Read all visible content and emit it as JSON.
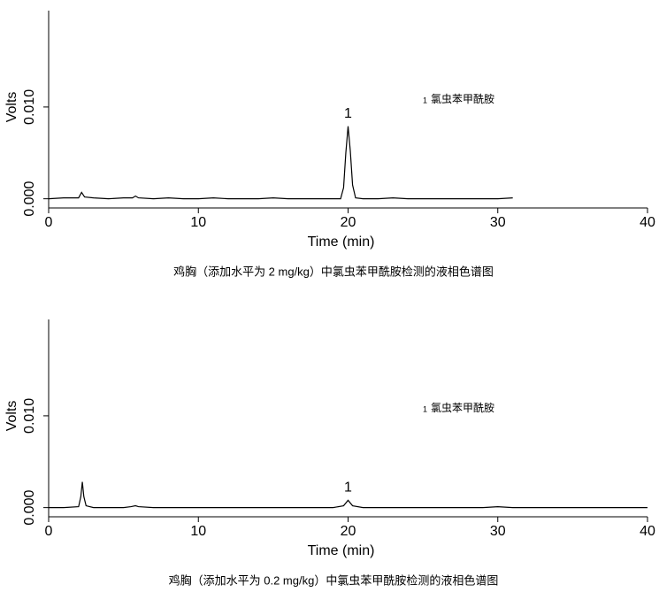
{
  "chart_data": [
    {
      "type": "line",
      "x_label": "Time (min)",
      "y_label": "Volts",
      "caption": "鸡胸（添加水平为 2 mg/kg）中氯虫苯甲酰胺检测的液相色谱图",
      "xlim": [
        0,
        40
      ],
      "xticks": [
        0,
        10,
        20,
        30,
        40
      ],
      "ylim": [
        -0.001,
        0.0205
      ],
      "yticks": [
        {
          "value": 0,
          "label": "0.000"
        },
        {
          "value": 0.01,
          "label": "0.010"
        }
      ],
      "legend_marker": "1",
      "peaks": [
        {
          "label": "1",
          "x": 20
        }
      ],
      "x": [
        0,
        1,
        2,
        2.2,
        2.4,
        3,
        4,
        5,
        5.6,
        5.8,
        6,
        7,
        8,
        9,
        10,
        11,
        12,
        13,
        14,
        15,
        16,
        17,
        18,
        19,
        19.5,
        19.7,
        19.85,
        20,
        20.15,
        20.3,
        20.5,
        21,
        22,
        23,
        24,
        25,
        26,
        27,
        28,
        29,
        30,
        31
      ],
      "series": [
        {
          "name": "氯虫苯甲酰胺",
          "color": "#000000",
          "values": [
            0,
            0.0001,
            0.0001,
            0.0007,
            0.0002,
            0.0001,
            0,
            0.0001,
            0.0001,
            0.0003,
            0.0001,
            0,
            0.0001,
            0,
            0,
            0.0001,
            0,
            0,
            0,
            0.0001,
            0,
            0,
            0,
            0,
            0,
            0.0012,
            0.005,
            0.0079,
            0.0052,
            0.0015,
            0.0001,
            0,
            0,
            0.0001,
            0,
            0,
            0,
            0,
            0,
            0,
            0,
            0.0001
          ]
        }
      ]
    },
    {
      "type": "line",
      "x_label": "Time (min)",
      "y_label": "Volts",
      "caption": "鸡胸（添加水平为 0.2 mg/kg）中氯虫苯甲酰胺检测的液相色谱图",
      "xlim": [
        0,
        40
      ],
      "xticks": [
        0,
        10,
        20,
        30,
        40
      ],
      "ylim": [
        -0.001,
        0.0205
      ],
      "yticks": [
        {
          "value": 0,
          "label": "0.000"
        },
        {
          "value": 0.01,
          "label": "0.010"
        }
      ],
      "legend_marker": "1",
      "peaks": [
        {
          "label": "1",
          "x": 20
        }
      ],
      "x": [
        0,
        1,
        2,
        2.15,
        2.25,
        2.35,
        2.5,
        3,
        4,
        5,
        5.5,
        5.8,
        6,
        7,
        8,
        9,
        10,
        11,
        12,
        13,
        14,
        15,
        16,
        17,
        18,
        19,
        19.7,
        20,
        20.3,
        21,
        22,
        23,
        24,
        25,
        26,
        27,
        28,
        29,
        30,
        31,
        32,
        33,
        34,
        35,
        36,
        37,
        38,
        39,
        40
      ],
      "series": [
        {
          "name": "氯虫苯甲酰胺",
          "color": "#000000",
          "values": [
            0,
            0,
            0.0001,
            0.0012,
            0.0028,
            0.0012,
            0.0002,
            0,
            0,
            0,
            0.0001,
            0.0002,
            0.0001,
            0,
            0,
            0,
            0,
            0,
            0,
            0,
            0,
            0,
            0,
            0,
            0,
            0,
            0.0002,
            0.0008,
            0.0002,
            0,
            0,
            0,
            0,
            0,
            0,
            0,
            0,
            0,
            0.0001,
            0,
            0,
            0,
            0,
            0,
            0,
            0,
            0,
            0,
            0
          ]
        }
      ]
    }
  ]
}
